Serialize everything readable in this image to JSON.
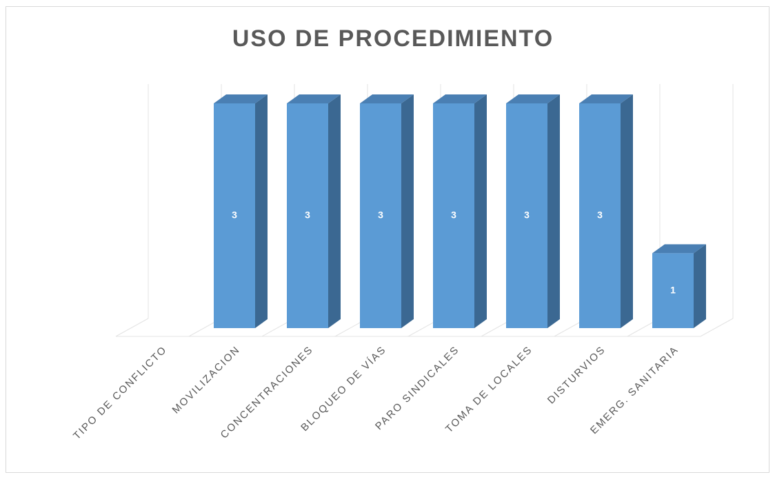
{
  "chart_data": {
    "type": "bar3d",
    "title": "USO DE PROCEDIMIENTO",
    "categories": [
      "TIPO DE CONFLICTO",
      "MOVILIZACION",
      "CONCENTRACIONES",
      "BLOQUEO DE VÍAS",
      "PARO SINDICALES",
      "TOMA DE LOCALES",
      "DISTURVIOS",
      "EMERG. SANITARIA"
    ],
    "values": [
      null,
      3,
      3,
      3,
      3,
      3,
      3,
      1
    ],
    "color": "#5b9bd5",
    "ylim": [
      0,
      3
    ]
  }
}
